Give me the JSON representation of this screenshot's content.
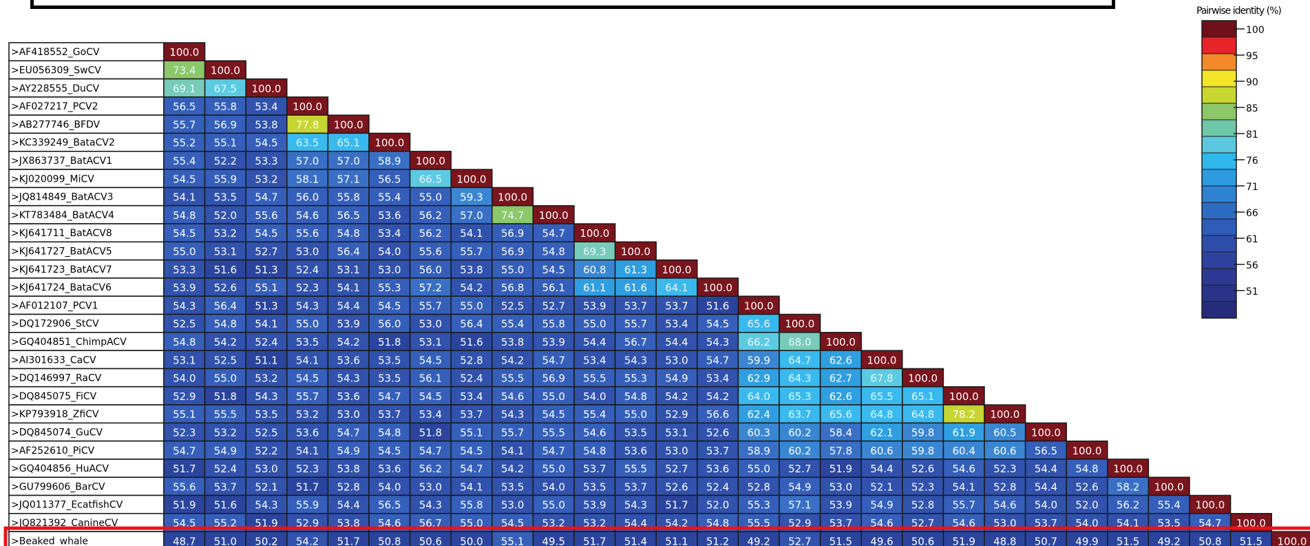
{
  "chart_data": {
    "type": "heatmap",
    "row_labels": [
      ">AF418552_GoCV",
      ">EU056309_SwCV",
      ">AY228555_DuCV",
      ">AF027217_PCV2",
      ">AB277746_BFDV",
      ">KC339249_BataCV2",
      ">JX863737_BatACV1",
      ">KJ020099_MiCV",
      ">JQ814849_BatACV3",
      ">KT783484_BatACV4",
      ">KJ641711_BatACV8",
      ">KJ641727_BatACV5",
      ">KJ641723_BatACV7",
      ">KJ641724_BataCV6",
      ">AF012107_PCV1",
      ">DQ172906_StCV",
      ">GQ404851_ChimpACV",
      ">AI301633_CaCV",
      ">DQ146997_RaCV",
      ">DQ845075_FiCV",
      ">KP793918_ZfiCV",
      ">DQ845074_GuCV",
      ">AF252610_PiCV",
      ">GQ404856_HuACV",
      ">GU799606_BarCV",
      ">JQ011377_EcatfishCV",
      ">JQ821392_CanineCV",
      ">Beaked_whale"
    ],
    "values": [
      [
        "100.0"
      ],
      [
        "73.4",
        "100.0"
      ],
      [
        "69.1",
        "67.5",
        "100.0"
      ],
      [
        "56.5",
        "55.8",
        "53.4",
        "100.0"
      ],
      [
        "55.7",
        "56.9",
        "53.8",
        "77.8",
        "100.0"
      ],
      [
        "55.2",
        "55.1",
        "54.5",
        "63.5",
        "65.1",
        "100.0"
      ],
      [
        "55.4",
        "52.2",
        "53.3",
        "57.0",
        "57.0",
        "58.9",
        "100.0"
      ],
      [
        "54.5",
        "55.9",
        "53.2",
        "58.1",
        "57.1",
        "56.5",
        "66.5",
        "100.0"
      ],
      [
        "54.1",
        "53.5",
        "54.7",
        "56.0",
        "55.8",
        "55.4",
        "55.0",
        "59.3",
        "100.0"
      ],
      [
        "54.8",
        "52.0",
        "55.6",
        "54.6",
        "56.5",
        "53.6",
        "56.2",
        "57.0",
        "74.7",
        "100.0"
      ],
      [
        "54.5",
        "53.2",
        "54.5",
        "55.6",
        "54.8",
        "53.4",
        "56.2",
        "54.1",
        "56.9",
        "54.7",
        "100.0"
      ],
      [
        "55.0",
        "53.1",
        "52.7",
        "53.0",
        "56.4",
        "54.0",
        "55.6",
        "55.7",
        "56.9",
        "54.8",
        "69.3",
        "100.0"
      ],
      [
        "53.3",
        "51.6",
        "51.3",
        "52.4",
        "53.1",
        "53.0",
        "56.0",
        "53.8",
        "55.0",
        "54.5",
        "60.8",
        "61.3",
        "100.0"
      ],
      [
        "53.9",
        "52.6",
        "55.1",
        "52.3",
        "54.1",
        "55.3",
        "57.2",
        "54.2",
        "56.8",
        "56.1",
        "61.1",
        "61.6",
        "64.1",
        "100.0"
      ],
      [
        "54.3",
        "56.4",
        "51.3",
        "54.3",
        "54.4",
        "54.5",
        "55.7",
        "55.0",
        "52.5",
        "52.7",
        "53.9",
        "53.7",
        "53.7",
        "51.6",
        "100.0"
      ],
      [
        "52.5",
        "54.8",
        "54.1",
        "55.0",
        "53.9",
        "56.0",
        "53.0",
        "56.4",
        "55.4",
        "55.8",
        "55.0",
        "55.7",
        "53.4",
        "54.5",
        "65.6",
        "100.0"
      ],
      [
        "54.8",
        "54.2",
        "52.4",
        "53.5",
        "54.2",
        "51.8",
        "53.1",
        "51.6",
        "53.8",
        "53.9",
        "54.4",
        "56.7",
        "54.4",
        "54.3",
        "66.2",
        "68.0",
        "100.0"
      ],
      [
        "53.1",
        "52.5",
        "51.1",
        "54.1",
        "53.6",
        "53.5",
        "54.5",
        "52.8",
        "54.2",
        "54.7",
        "53.4",
        "54.3",
        "53.0",
        "54.7",
        "59.9",
        "64.7",
        "62.6",
        "100.0"
      ],
      [
        "54.0",
        "55.0",
        "53.2",
        "54.5",
        "54.3",
        "53.5",
        "56.1",
        "52.4",
        "55.5",
        "56.9",
        "55.5",
        "55.3",
        "54.9",
        "53.4",
        "62.9",
        "64.3",
        "62.7",
        "67.8",
        "100.0"
      ],
      [
        "52.9",
        "51.8",
        "54.3",
        "55.7",
        "53.6",
        "54.7",
        "54.5",
        "53.4",
        "54.6",
        "55.0",
        "54.0",
        "54.8",
        "54.2",
        "54.2",
        "64.0",
        "65.3",
        "62.6",
        "65.5",
        "65.1",
        "100.0"
      ],
      [
        "55.1",
        "55.5",
        "53.5",
        "53.2",
        "53.0",
        "53.7",
        "53.4",
        "53.7",
        "54.3",
        "54.5",
        "55.4",
        "55.0",
        "52.9",
        "56.6",
        "62.4",
        "63.7",
        "65.6",
        "64.8",
        "64.8",
        "78.2",
        "100.0"
      ],
      [
        "52.3",
        "53.2",
        "52.5",
        "53.6",
        "54.7",
        "54.8",
        "51.8",
        "55.1",
        "55.7",
        "55.5",
        "54.6",
        "53.5",
        "53.1",
        "52.6",
        "60.3",
        "60.2",
        "58.4",
        "62.1",
        "59.8",
        "61.9",
        "60.5",
        "100.0"
      ],
      [
        "54.7",
        "54.9",
        "52.2",
        "54.1",
        "54.9",
        "54.5",
        "54.7",
        "54.5",
        "54.1",
        "54.7",
        "54.8",
        "53.6",
        "53.0",
        "53.7",
        "58.9",
        "60.2",
        "57.8",
        "60.6",
        "59.8",
        "60.4",
        "60.6",
        "56.5",
        "100.0"
      ],
      [
        "51.7",
        "52.4",
        "53.0",
        "52.3",
        "53.8",
        "53.6",
        "56.2",
        "54.7",
        "54.2",
        "55.0",
        "53.7",
        "55.5",
        "52.7",
        "53.6",
        "55.0",
        "52.7",
        "51.9",
        "54.4",
        "52.6",
        "54.6",
        "52.3",
        "54.4",
        "54.8",
        "100.0"
      ],
      [
        "55.6",
        "53.7",
        "52.1",
        "51.7",
        "52.8",
        "54.0",
        "53.0",
        "54.1",
        "53.5",
        "54.0",
        "53.5",
        "53.7",
        "52.6",
        "52.4",
        "52.8",
        "54.9",
        "53.0",
        "52.1",
        "52.3",
        "54.1",
        "52.8",
        "54.4",
        "52.6",
        "58.2",
        "100.0"
      ],
      [
        "51.9",
        "51.6",
        "54.3",
        "55.9",
        "54.4",
        "56.5",
        "54.3",
        "55.8",
        "53.0",
        "55.0",
        "53.9",
        "54.3",
        "51.7",
        "52.0",
        "55.3",
        "57.1",
        "53.9",
        "54.9",
        "52.8",
        "55.7",
        "54.6",
        "54.0",
        "52.0",
        "56.2",
        "55.4",
        "100.0"
      ],
      [
        "54.5",
        "55.2",
        "51.9",
        "52.9",
        "53.8",
        "54.6",
        "56.7",
        "55.0",
        "54.5",
        "53.2",
        "53.2",
        "54.4",
        "54.2",
        "54.8",
        "55.5",
        "52.9",
        "53.7",
        "54.6",
        "52.7",
        "54.6",
        "53.0",
        "53.7",
        "54.0",
        "54.1",
        "53.5",
        "54.7",
        "100.0"
      ],
      [
        "48.7",
        "51.0",
        "50.2",
        "54.2",
        "51.7",
        "50.8",
        "50.6",
        "50.0",
        "55.1",
        "49.5",
        "51.7",
        "51.4",
        "51.1",
        "51.2",
        "49.2",
        "52.7",
        "51.5",
        "49.6",
        "50.6",
        "51.9",
        "48.8",
        "50.7",
        "49.9",
        "51.5",
        "49.2",
        "50.8",
        "51.5",
        "100.0"
      ]
    ],
    "legend": {
      "title": "Pairwise identity (%)",
      "ticks": [
        "100",
        "95",
        "90",
        "85",
        "81",
        "76",
        "71",
        "66",
        "61",
        "56",
        "51"
      ],
      "colors": [
        "#6e1018",
        "#e5252a",
        "#f28a2a",
        "#f4e626",
        "#c8d630",
        "#8cc76a",
        "#6ec7a8",
        "#5bc8e0",
        "#2eb8ec",
        "#2e9be0",
        "#2e82d2",
        "#2e6cc4",
        "#2f5cb8",
        "#2f4eac",
        "#2e439f",
        "#2c3a93",
        "#2a3388",
        "#252c7b"
      ]
    },
    "colors": {
      "highlight_box": "#e8141c",
      "cell_border": "#1a1a1a"
    }
  }
}
